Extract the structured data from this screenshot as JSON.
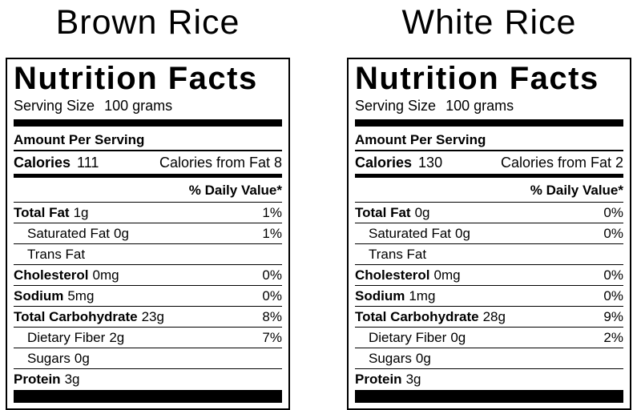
{
  "colors": {
    "text": "#000000",
    "background": "#ffffff",
    "rule": "#000000"
  },
  "labels": [
    {
      "title": "Brown Rice",
      "header": "Nutrition Facts",
      "serving_size_label": "Serving Size",
      "serving_size_value": "100 grams",
      "amount_per_serving": "Amount Per Serving",
      "calories_label": "Calories",
      "calories_value": "111",
      "calories_from_fat": "Calories from Fat 8",
      "daily_value_header": "% Daily Value*",
      "rows": [
        {
          "label": "Total Fat",
          "amount": "1g",
          "dv": "1%"
        },
        {
          "label": "Saturated Fat",
          "amount": "0g",
          "dv": "1%"
        },
        {
          "label": "Trans Fat",
          "amount": "",
          "dv": ""
        },
        {
          "label": "Cholesterol",
          "amount": "0mg",
          "dv": "0%"
        },
        {
          "label": "Sodium",
          "amount": "5mg",
          "dv": "0%"
        },
        {
          "label": "Total Carbohydrate",
          "amount": "23g",
          "dv": "8%"
        },
        {
          "label": "Dietary Fiber",
          "amount": "2g",
          "dv": "7%"
        },
        {
          "label": "Sugars",
          "amount": "0g",
          "dv": ""
        },
        {
          "label": "Protein",
          "amount": "3g",
          "dv": ""
        }
      ]
    },
    {
      "title": "White Rice",
      "header": "Nutrition Facts",
      "serving_size_label": "Serving Size",
      "serving_size_value": "100 grams",
      "amount_per_serving": "Amount Per Serving",
      "calories_label": "Calories",
      "calories_value": "130",
      "calories_from_fat": "Calories from Fat 2",
      "daily_value_header": "% Daily Value*",
      "rows": [
        {
          "label": "Total Fat",
          "amount": "0g",
          "dv": "0%"
        },
        {
          "label": "Saturated Fat",
          "amount": "0g",
          "dv": "0%"
        },
        {
          "label": "Trans Fat",
          "amount": "",
          "dv": ""
        },
        {
          "label": "Cholesterol",
          "amount": "0mg",
          "dv": "0%"
        },
        {
          "label": "Sodium",
          "amount": "1mg",
          "dv": "0%"
        },
        {
          "label": "Total Carbohydrate",
          "amount": "28g",
          "dv": "9%"
        },
        {
          "label": "Dietary Fiber",
          "amount": "0g",
          "dv": "2%"
        },
        {
          "label": "Sugars",
          "amount": "0g",
          "dv": ""
        },
        {
          "label": "Protein",
          "amount": "3g",
          "dv": ""
        }
      ]
    }
  ]
}
